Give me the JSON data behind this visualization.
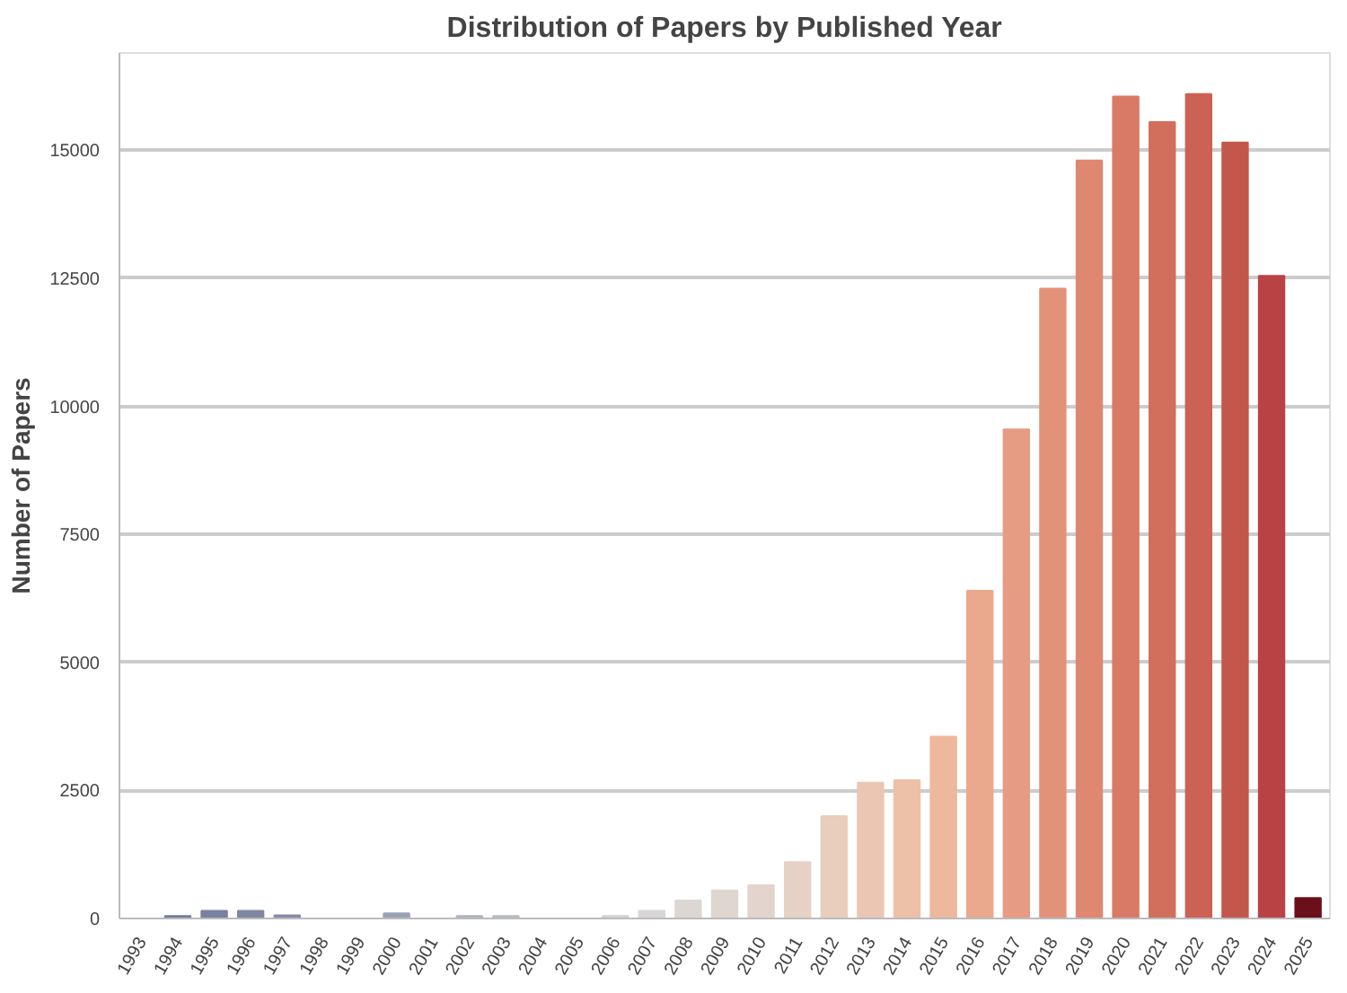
{
  "chart_data": {
    "type": "bar",
    "title": "Distribution of Papers by Published Year",
    "ylabel": "Number of Papers",
    "categories": [
      "1993",
      "1994",
      "1995",
      "1996",
      "1997",
      "1998",
      "1999",
      "2000",
      "2001",
      "2002",
      "2003",
      "2004",
      "2005",
      "2006",
      "2007",
      "2008",
      "2009",
      "2010",
      "2011",
      "2012",
      "2013",
      "2014",
      "2015",
      "2016",
      "2017",
      "2018",
      "2019",
      "2020",
      "2021",
      "2022",
      "2023",
      "2024",
      "2025"
    ],
    "values": [
      0,
      50,
      150,
      150,
      60,
      0,
      0,
      100,
      0,
      50,
      50,
      0,
      0,
      50,
      150,
      350,
      550,
      650,
      1100,
      2000,
      2650,
      2700,
      3550,
      6400,
      9550,
      12300,
      14800,
      16050,
      15550,
      16100,
      15150,
      12550,
      400
    ],
    "colors": [
      "#6f7898",
      "#737c9c",
      "#7981a0",
      "#7f87a4",
      "#858ca8",
      "#8c93ad",
      "#949ab2",
      "#9ca2b6",
      "#a5aabb",
      "#aeb2c0",
      "#b7bac6",
      "#c0c2cb",
      "#c9cad0",
      "#d2d1d4",
      "#d9d6d6",
      "#ddd7d4",
      "#e0d6d1",
      "#e3d4cd",
      "#e6d1c6",
      "#e9cdbd",
      "#ebc7b3",
      "#edc0a8",
      "#eeb89c",
      "#eaa88d",
      "#e69c83",
      "#e3927a",
      "#df8770",
      "#d97a66",
      "#d26e5c",
      "#cb6253",
      "#c4574b",
      "#b94344",
      "#6b0f1a"
    ],
    "ylim": [
      0,
      16900
    ],
    "yticks": [
      0,
      2500,
      5000,
      7500,
      10000,
      12500,
      15000
    ],
    "grid": "y"
  }
}
